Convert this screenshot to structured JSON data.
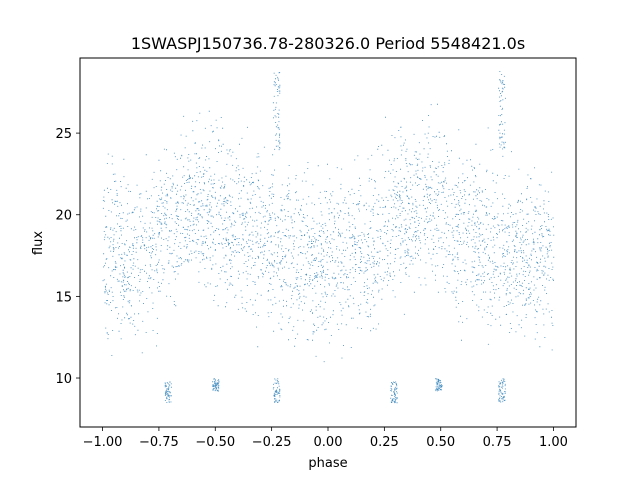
{
  "chart_data": {
    "type": "scatter",
    "title": "1SWASPJ150736.78-280326.0 Period 5548421.0s",
    "xlabel": "phase",
    "ylabel": "flux",
    "xlim": [
      -1.1,
      1.1
    ],
    "ylim": [
      7.0,
      29.6
    ],
    "grid": false,
    "legend": "none",
    "color": "#1f77b4",
    "xticks": [
      -1.0,
      -0.75,
      -0.5,
      -0.25,
      0.0,
      0.25,
      0.5,
      0.75,
      1.0
    ],
    "xtick_labels": [
      "−1.00",
      "−0.75",
      "−0.50",
      "−0.25",
      "0.00",
      "0.25",
      "0.50",
      "0.75",
      "1.00"
    ],
    "yticks": [
      10,
      15,
      20,
      25
    ],
    "ytick_labels": [
      "10",
      "15",
      "20",
      "25"
    ],
    "x_range": [
      -1.0,
      1.0
    ],
    "trend": [
      [
        -1.0,
        17.5
      ],
      [
        -0.95,
        17.8
      ],
      [
        -0.9,
        17.0
      ],
      [
        -0.85,
        17.3
      ],
      [
        -0.8,
        18.0
      ],
      [
        -0.75,
        19.0
      ],
      [
        -0.7,
        19.8
      ],
      [
        -0.65,
        20.3
      ],
      [
        -0.6,
        20.6
      ],
      [
        -0.55,
        20.5
      ],
      [
        -0.5,
        20.0
      ],
      [
        -0.45,
        19.5
      ],
      [
        -0.4,
        19.0
      ],
      [
        -0.35,
        18.7
      ],
      [
        -0.3,
        18.4
      ],
      [
        -0.25,
        18.3
      ],
      [
        -0.2,
        17.9
      ],
      [
        -0.15,
        17.6
      ],
      [
        -0.1,
        17.8
      ],
      [
        -0.05,
        17.4
      ],
      [
        0.0,
        17.5
      ],
      [
        0.05,
        17.8
      ],
      [
        0.1,
        17.0
      ],
      [
        0.15,
        17.3
      ],
      [
        0.2,
        18.0
      ],
      [
        0.25,
        19.0
      ],
      [
        0.3,
        19.8
      ],
      [
        0.35,
        20.3
      ],
      [
        0.4,
        20.6
      ],
      [
        0.45,
        20.5
      ],
      [
        0.5,
        20.0
      ],
      [
        0.55,
        19.5
      ],
      [
        0.6,
        19.0
      ],
      [
        0.65,
        18.7
      ],
      [
        0.7,
        18.4
      ],
      [
        0.75,
        18.3
      ],
      [
        0.8,
        17.9
      ],
      [
        0.85,
        17.6
      ],
      [
        0.9,
        17.8
      ],
      [
        0.95,
        17.4
      ],
      [
        1.0,
        17.5
      ]
    ],
    "scatter_half_width": 2.6,
    "outlier_clusters": [
      {
        "x": -0.23,
        "y_range": [
          24.0,
          28.8
        ]
      },
      {
        "x": 0.77,
        "y_range": [
          24.0,
          28.8
        ]
      },
      {
        "x": -0.23,
        "y_range": [
          8.5,
          10.0
        ]
      },
      {
        "x": 0.77,
        "y_range": [
          8.5,
          10.0
        ]
      },
      {
        "x": -0.5,
        "y_range": [
          9.2,
          10.0
        ]
      },
      {
        "x": 0.49,
        "y_range": [
          9.2,
          10.0
        ]
      },
      {
        "x": -0.71,
        "y_range": [
          8.5,
          9.8
        ]
      },
      {
        "x": 0.29,
        "y_range": [
          8.5,
          9.8
        ]
      }
    ],
    "n_points": 9000
  }
}
